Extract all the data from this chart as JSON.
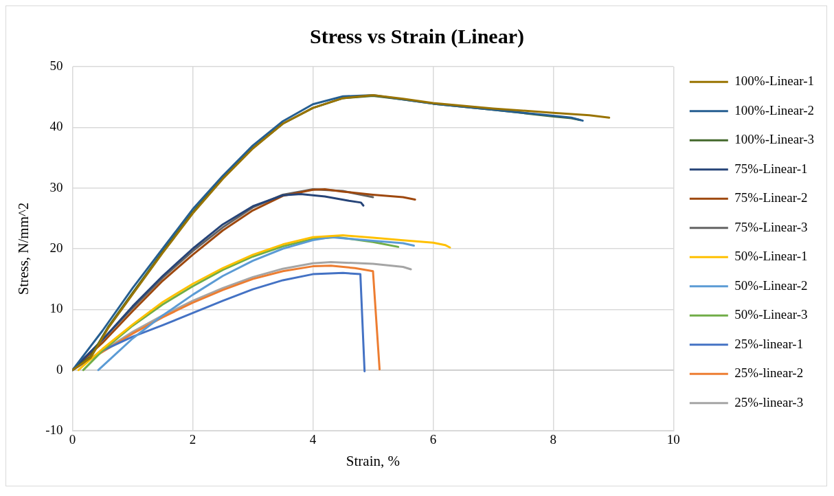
{
  "chart_data": {
    "type": "line",
    "title": "Stress vs Strain (Linear)",
    "xlabel": "Strain, %",
    "ylabel": "Stress, N/mm^2",
    "xlim": [
      0,
      10
    ],
    "xticks": [
      0,
      2,
      4,
      6,
      8,
      10
    ],
    "ylim": [
      -10,
      50
    ],
    "yticks": [
      -10,
      0,
      10,
      20,
      30,
      40,
      50
    ],
    "grid": true,
    "legend": "right",
    "marker": "none",
    "line_style": "solid",
    "series": [
      {
        "name": "100%-Linear-1",
        "color": "#997300",
        "x": [
          0,
          0.3,
          0.6,
          1,
          1.5,
          2,
          2.5,
          3,
          3.5,
          4,
          4.5,
          5,
          5.5,
          6,
          7,
          8,
          8.6,
          8.93
        ],
        "values": [
          0,
          2,
          7,
          12.5,
          19.3,
          25.8,
          31.5,
          36.5,
          40.6,
          43.2,
          44.8,
          45.3,
          44.7,
          44,
          43.1,
          42.4,
          42,
          41.6
        ]
      },
      {
        "name": "100%-Linear-2",
        "color": "#255e91",
        "x": [
          0,
          0.5,
          1,
          1.5,
          2,
          2.5,
          3,
          3.5,
          4,
          4.5,
          5,
          5.5,
          6,
          7,
          8,
          8.3,
          8.49
        ],
        "values": [
          0,
          6.5,
          13.5,
          20,
          26.5,
          32,
          37,
          41,
          43.8,
          45.1,
          45.3,
          44.6,
          43.9,
          42.9,
          41.9,
          41.6,
          41.1
        ]
      },
      {
        "name": "100%-Linear-3",
        "color": "#43682b",
        "x": [
          0,
          0.3,
          0.6,
          1,
          1.5,
          2,
          2.5,
          3,
          3.5,
          4,
          4.5,
          5,
          5.5,
          6,
          7,
          8,
          8.3,
          8.45
        ],
        "values": [
          0,
          2.2,
          7.2,
          12.7,
          19.5,
          26,
          31.7,
          36.6,
          40.6,
          43.2,
          44.8,
          45.2,
          44.6,
          43.9,
          42.9,
          41.8,
          41.5,
          41.2
        ]
      },
      {
        "name": "75%-Linear-1",
        "color": "#264478",
        "x": [
          0,
          0.5,
          1,
          1.5,
          2,
          2.5,
          3,
          3.5,
          3.8,
          4.2,
          4.6,
          4.8,
          4.84
        ],
        "values": [
          0,
          5,
          10.5,
          15.5,
          20,
          24,
          27,
          28.8,
          29,
          28.6,
          27.9,
          27.6,
          27.1
        ]
      },
      {
        "name": "75%-Linear-2",
        "color": "#9e480e",
        "x": [
          0,
          0.5,
          1,
          1.5,
          2,
          2.5,
          3,
          3.5,
          4,
          4.2,
          4.5,
          5,
          5.5,
          5.7
        ],
        "values": [
          0,
          4.5,
          9.7,
          14.7,
          19,
          23,
          26.3,
          28.7,
          29.7,
          29.8,
          29.4,
          28.9,
          28.5,
          28.1
        ]
      },
      {
        "name": "75%-Linear-3",
        "color": "#636363",
        "x": [
          0,
          0.5,
          1,
          1.5,
          2,
          2.5,
          3,
          3.5,
          4,
          4.5,
          5
        ],
        "values": [
          0,
          5,
          10.2,
          15.2,
          19.6,
          23.5,
          26.8,
          28.9,
          29.8,
          29.5,
          28.5
        ]
      },
      {
        "name": "50%-Linear-1",
        "color": "#ffc000",
        "x": [
          0.1,
          0.5,
          1,
          1.5,
          2,
          2.5,
          3,
          3.5,
          4,
          4.5,
          5,
          5.5,
          6,
          6.2,
          6.28
        ],
        "values": [
          0,
          3.5,
          7.5,
          11.2,
          14.2,
          16.8,
          19,
          20.7,
          21.9,
          22.2,
          21.8,
          21.4,
          21,
          20.6,
          20.2
        ]
      },
      {
        "name": "50%-Linear-2",
        "color": "#5b9bd5",
        "x": [
          0.43,
          1,
          1.5,
          2,
          2.5,
          3,
          3.5,
          4,
          4.3,
          5,
          5.5,
          5.68
        ],
        "values": [
          0,
          5.2,
          9,
          12.4,
          15.5,
          18,
          20,
          21.4,
          21.9,
          21.3,
          20.9,
          20.5
        ]
      },
      {
        "name": "50%-Linear-3",
        "color": "#70ad47",
        "x": [
          0.18,
          0.5,
          1,
          1.5,
          2,
          2.5,
          3,
          3.5,
          4,
          4.4,
          5,
          5.42
        ],
        "values": [
          0,
          3.2,
          7.3,
          10.8,
          13.8,
          16.5,
          18.7,
          20.4,
          21.6,
          21.9,
          21.1,
          20.3
        ]
      },
      {
        "name": "25%-linear-1",
        "color": "#4472c4",
        "x": [
          0,
          0.5,
          1,
          1.5,
          2,
          2.5,
          3,
          3.5,
          4,
          4.5,
          4.79,
          4.86
        ],
        "values": [
          0,
          3.2,
          5.5,
          7.4,
          9.4,
          11.4,
          13.3,
          14.8,
          15.8,
          16,
          15.8,
          -0.2
        ]
      },
      {
        "name": "25%-linear-2",
        "color": "#ed7d31",
        "x": [
          0,
          0.5,
          1,
          1.5,
          2,
          2.5,
          3,
          3.5,
          4,
          4.3,
          4.7,
          5,
          5.11
        ],
        "values": [
          0,
          3,
          6,
          8.7,
          11.1,
          13.2,
          15,
          16.3,
          17.1,
          17.2,
          16.8,
          16.3,
          0.1
        ]
      },
      {
        "name": "25%-linear-3",
        "color": "#a5a5a5",
        "x": [
          0,
          1,
          1.5,
          2,
          2.5,
          3,
          3.5,
          4,
          4.3,
          5,
          5.5,
          5.63
        ],
        "values": [
          0,
          6.3,
          9,
          11.4,
          13.5,
          15.3,
          16.7,
          17.6,
          17.8,
          17.5,
          17,
          16.6
        ]
      }
    ]
  }
}
